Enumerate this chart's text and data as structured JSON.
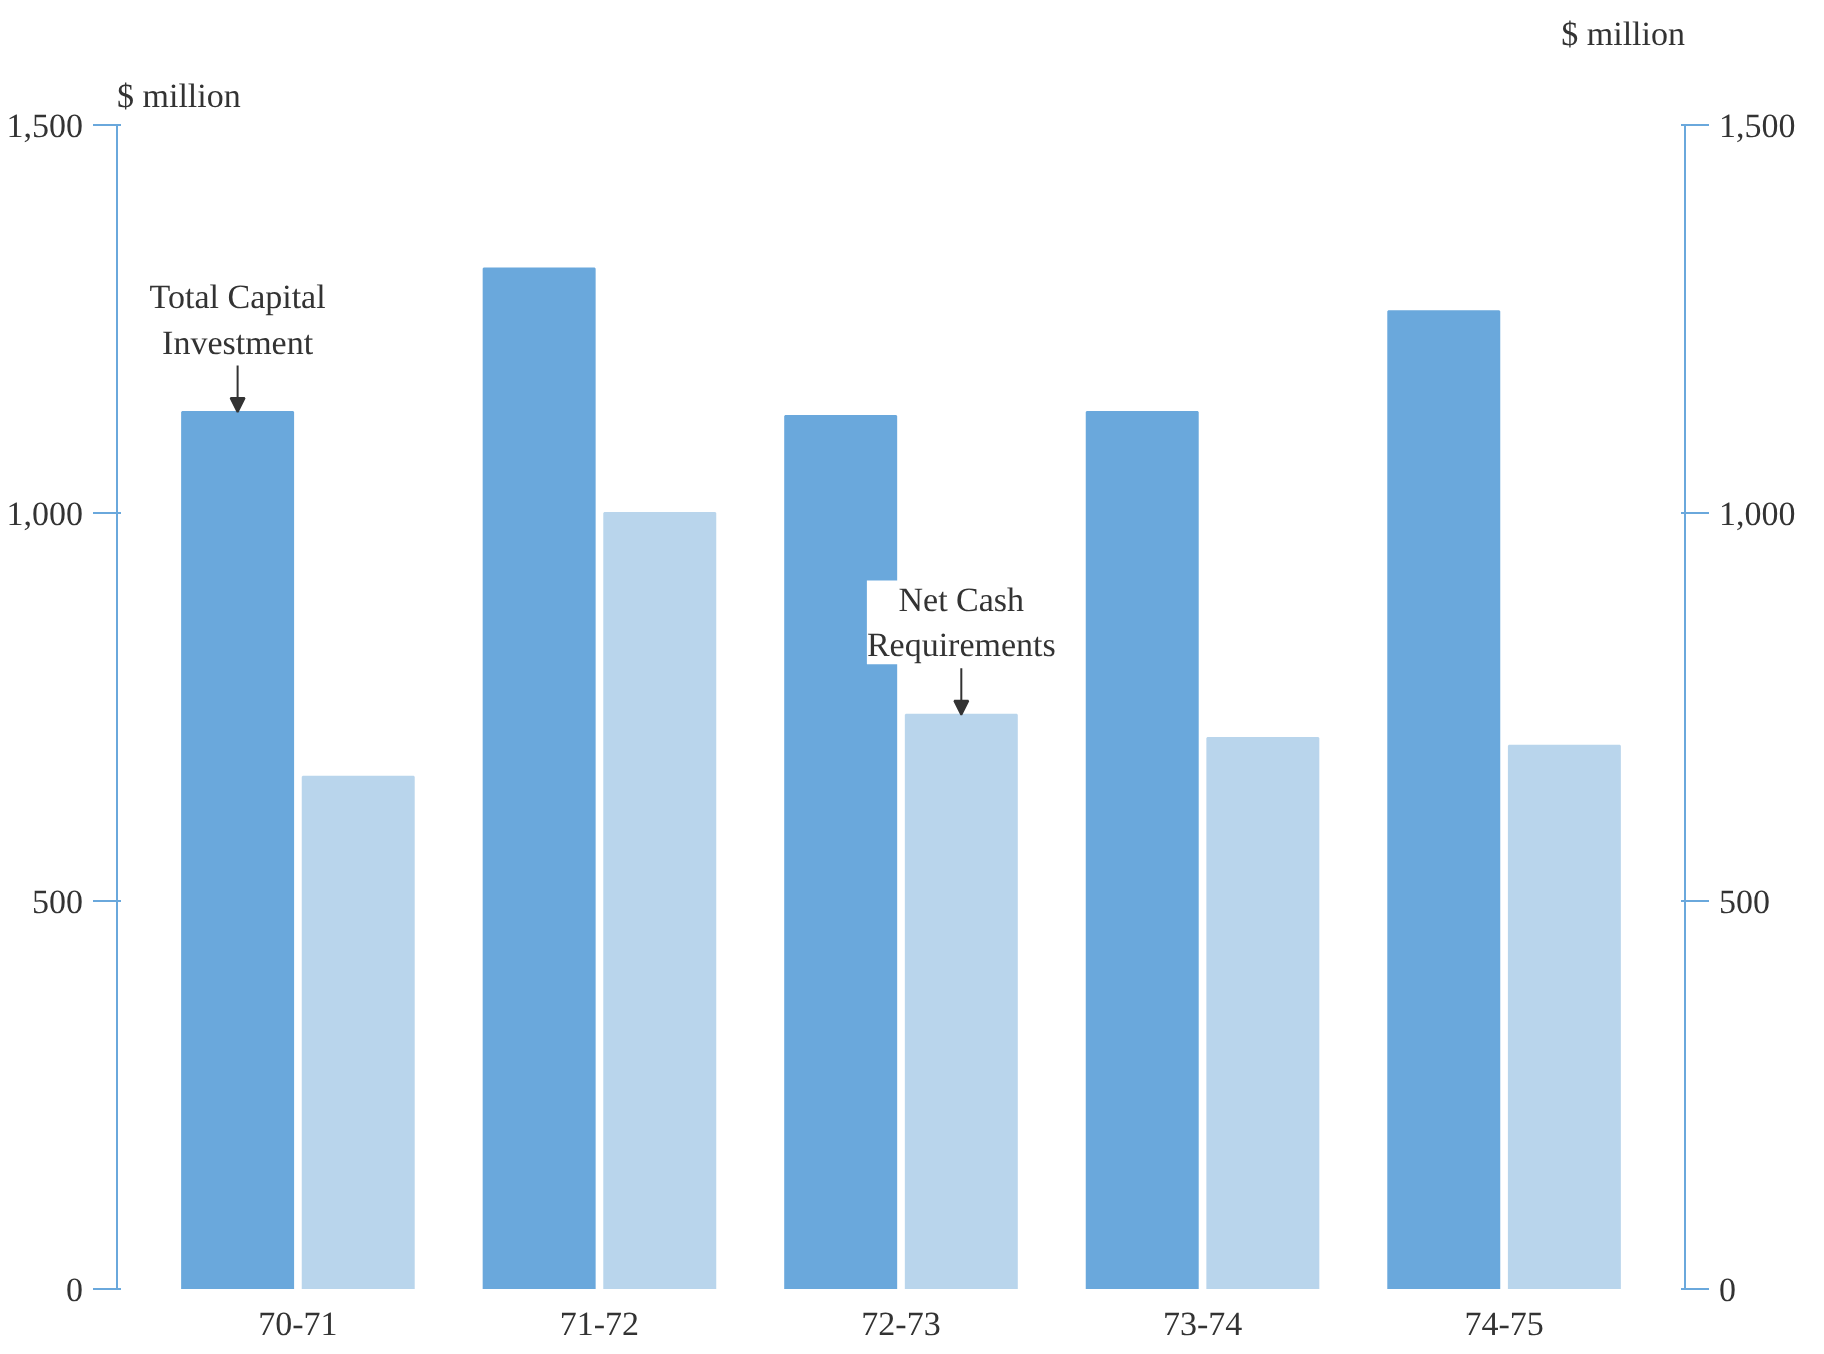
{
  "chart_data": {
    "type": "bar",
    "ylabel": "$ million",
    "y2label": "$ million",
    "categories": [
      "70-71",
      "71-72",
      "72-73",
      "73-74",
      "74-75"
    ],
    "series": [
      {
        "color": "#6aa8dc",
        "values": [
          1130,
          1315,
          1125,
          1130,
          1260
        ]
      },
      {
        "color": "#b9d5ec",
        "values": [
          660,
          1000,
          740,
          710,
          700
        ]
      }
    ],
    "ylim": [
      0,
      1500
    ],
    "yticks": [
      0,
      500,
      {
        "value": 1000,
        "label": "1,000"
      },
      {
        "value": 1500,
        "label": "1,500"
      }
    ],
    "y2lim": [
      0,
      1500
    ],
    "y2ticks": [
      0,
      500,
      {
        "value": 1000,
        "label": "1,000"
      },
      {
        "value": 1500,
        "label": "1,500"
      }
    ],
    "annotations": [
      {
        "text": "Total Capital Investment",
        "x": "70-71",
        "y": 1130
      },
      {
        "text": "Net Cash Requirements",
        "x": "72-73",
        "y": 740
      }
    ],
    "grid": false
  }
}
